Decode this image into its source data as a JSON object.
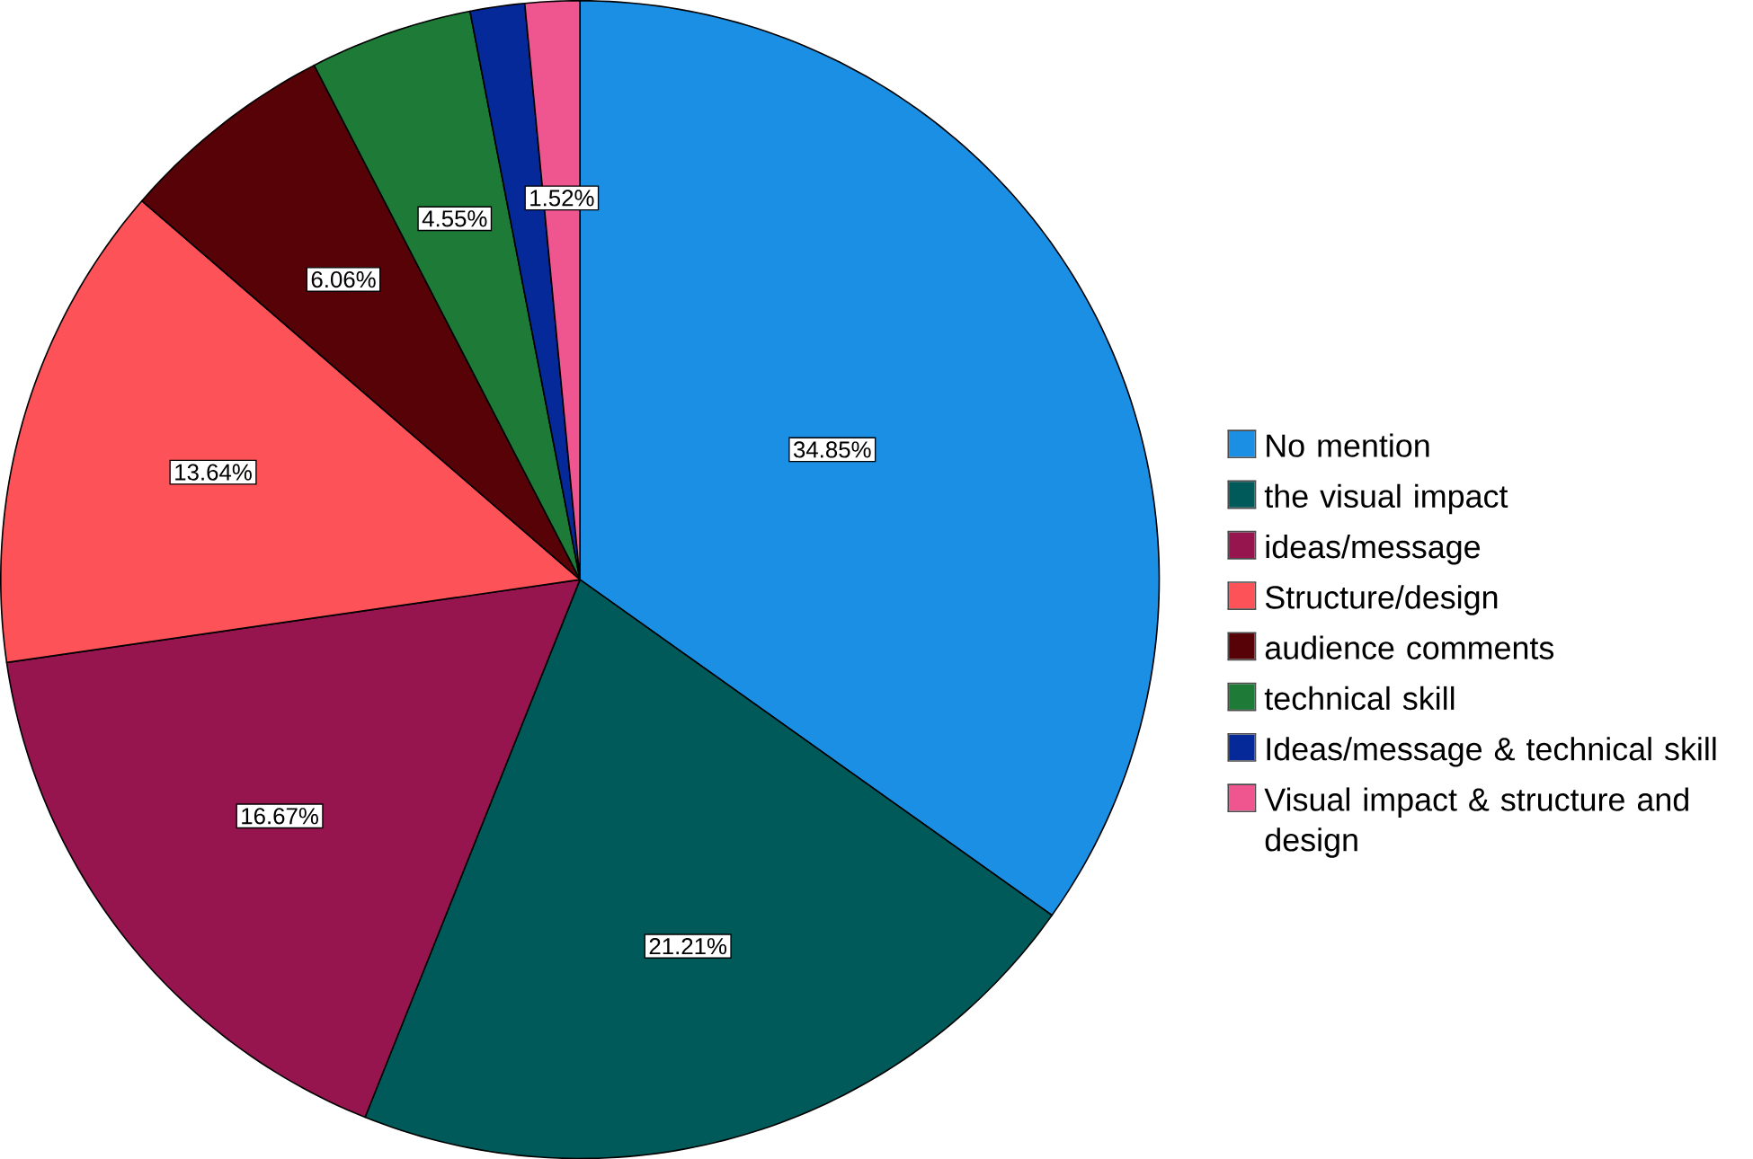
{
  "chart_data": {
    "type": "pie",
    "categories": [
      "No mention",
      "the visual impact",
      "ideas/message",
      "Structure/design",
      "audience comments",
      "technical skill",
      "Ideas/message & technical skill",
      "Visual impact & structure and design"
    ],
    "values": [
      34.85,
      21.21,
      16.67,
      13.64,
      6.06,
      4.55,
      1.52,
      1.52
    ],
    "value_labels": [
      "34.85%",
      "21.21%",
      "16.67%",
      "13.64%",
      "6.06%",
      "4.55%",
      null,
      "1.52%"
    ],
    "colors": [
      "#1a8fe3",
      "#005a5a",
      "#96154f",
      "#fd5257",
      "#560207",
      "#1e7a37",
      "#06299a",
      "#ef5690"
    ],
    "legend": "right"
  }
}
